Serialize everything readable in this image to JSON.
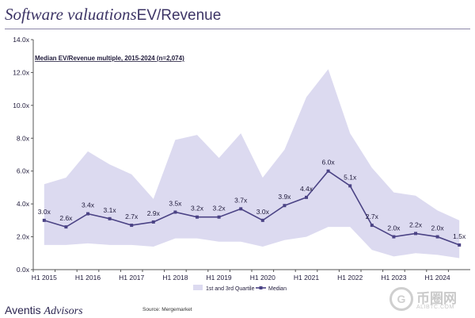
{
  "header": {
    "title_italic": "Software valuations",
    "title_rest": "EV/Revenue"
  },
  "footer": {
    "brand_regular": "Aventis ",
    "brand_italic": "Advisors",
    "source": "Source: Mergemarket"
  },
  "watermark": {
    "text": "币圈网",
    "sub": "ALIBTC.COM"
  },
  "colors": {
    "band": "#dcdaf0",
    "line": "#4b4385",
    "text": "#1f1a3a",
    "axis": "#555555"
  },
  "chart_data": {
    "type": "area",
    "title": "Median EV/Revenue multiple, 2015-2024 (n=2,074)",
    "x": [
      "H1 2015",
      "H2 2015",
      "H1 2016",
      "H2 2016",
      "H1 2017",
      "H2 2017",
      "H1 2018",
      "H2 2018",
      "H1 2019",
      "H2 2019",
      "H1 2020",
      "H2 2020",
      "H1 2021",
      "H2 2021",
      "H1 2022",
      "H2 2022",
      "H1 2023",
      "H2 2023",
      "H1 2024",
      "H2 2024"
    ],
    "xticks": [
      "H1 2015",
      "H1 2016",
      "H1 2017",
      "H1 2018",
      "H1 2019",
      "H1 2020",
      "H1 2021",
      "H1 2022",
      "H1 2023",
      "H1 2024"
    ],
    "ylim": [
      0,
      14
    ],
    "yticks": [
      "0.0x",
      "2.0x",
      "4.0x",
      "6.0x",
      "8.0x",
      "10.0x",
      "12.0x",
      "14.0x"
    ],
    "series": [
      {
        "name": "Median",
        "values": [
          3.0,
          2.6,
          3.4,
          3.1,
          2.7,
          2.9,
          3.5,
          3.2,
          3.2,
          3.7,
          3.0,
          3.9,
          4.4,
          6.0,
          5.1,
          2.7,
          2.0,
          2.2,
          2.0,
          1.5
        ],
        "labels": [
          "3.0x",
          "2.6x",
          "3.4x",
          "3.1x",
          "2.7x",
          "2.9x",
          "3.5x",
          "3.2x",
          "3.2x",
          "3.7x",
          "3.0x",
          "3.9x",
          "4.4x",
          "6.0x",
          "5.1x",
          "2.7x",
          "2.0x",
          "2.2x",
          "2.0x",
          "1.5x"
        ]
      },
      {
        "name": "1st and 3rd Quartile",
        "lower": [
          1.5,
          1.5,
          1.6,
          1.5,
          1.5,
          1.4,
          1.9,
          1.9,
          1.7,
          1.7,
          1.4,
          1.8,
          2.0,
          2.6,
          2.6,
          1.2,
          0.8,
          1.0,
          0.9,
          0.7
        ],
        "upper": [
          5.2,
          5.6,
          7.2,
          6.4,
          5.8,
          4.3,
          7.9,
          8.2,
          6.8,
          8.3,
          5.6,
          7.3,
          10.5,
          12.2,
          8.3,
          6.2,
          4.7,
          4.5,
          3.6,
          3.0
        ]
      }
    ],
    "legend": [
      "1st and 3rd Quartile",
      "Median"
    ],
    "legend_position": "bottom-center"
  }
}
